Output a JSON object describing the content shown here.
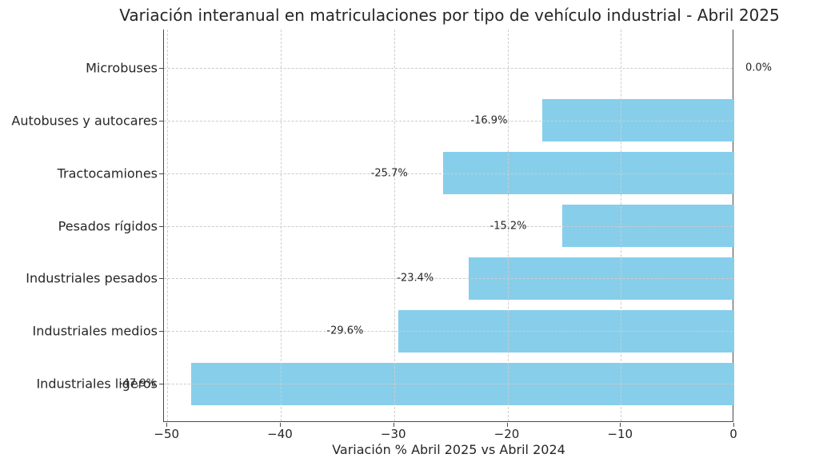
{
  "chart_data": {
    "type": "bar",
    "orientation": "horizontal",
    "title": "Variación interanual en matriculaciones por tipo de vehículo industrial - Abril 2025",
    "xlabel": "Variación % Abril 2025 vs Abril 2024",
    "categories": [
      "Microbuses",
      "Autobuses y autocares",
      "Tractocamiones",
      "Pesados rígidos",
      "Industriales pesados",
      "Industriales medios",
      "Industriales ligeros"
    ],
    "values": [
      0.0,
      -16.9,
      -25.7,
      -15.2,
      -23.4,
      -29.6,
      -47.9
    ],
    "value_labels": [
      "0.0%",
      "-16.9%",
      "-25.7%",
      "-15.2%",
      "-23.4%",
      "-29.6%",
      "-47.9%"
    ],
    "xlim": [
      -50.3,
      0
    ],
    "xticks": [
      -50,
      -40,
      -30,
      -20,
      -10,
      0
    ],
    "xtick_labels": [
      "−50",
      "−40",
      "−30",
      "−20",
      "−10",
      "0"
    ],
    "grid": true,
    "legend": null,
    "bar_color": "#87CEEB",
    "grid_color": "#cdcdcd",
    "spine_color": "#4a4a4a",
    "text_color": "#262626",
    "background_color": "#ffffff"
  }
}
